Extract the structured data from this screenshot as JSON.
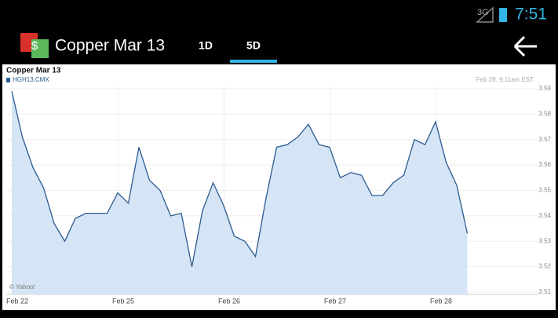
{
  "status_bar": {
    "network": "3G",
    "time": "7:51"
  },
  "action_bar": {
    "title": "Copper Mar 13",
    "tabs": [
      "1D",
      "5D"
    ]
  },
  "chart_data": {
    "type": "line",
    "title": "Copper Mar 13",
    "timestamp": "Feb 28, 9:11am EST",
    "credit": "© Yahoo!",
    "categories": [
      "Feb 22",
      null,
      null,
      null,
      null,
      null,
      null,
      null,
      null,
      null,
      "Feb 25",
      null,
      null,
      null,
      null,
      null,
      null,
      null,
      null,
      null,
      "Feb 26",
      null,
      null,
      null,
      null,
      null,
      null,
      null,
      null,
      null,
      "Feb 27",
      null,
      null,
      null,
      null,
      null,
      null,
      null,
      null,
      null,
      "Feb 28",
      null,
      null,
      null
    ],
    "series": [
      {
        "name": "HGH13.CMX",
        "color": "#2b5b91",
        "fill": "#d5e5f5",
        "values": [
          3.589,
          3.571,
          3.559,
          3.551,
          3.537,
          3.53,
          3.539,
          3.541,
          3.541,
          3.541,
          3.549,
          3.545,
          3.567,
          3.554,
          3.55,
          3.54,
          3.541,
          3.52,
          3.542,
          3.553,
          3.544,
          3.532,
          3.53,
          3.524,
          3.547,
          3.567,
          3.568,
          3.571,
          3.576,
          3.568,
          3.567,
          3.555,
          3.557,
          3.556,
          3.548,
          3.548,
          3.553,
          3.556,
          3.57,
          3.568,
          3.577,
          3.561,
          3.552,
          3.533
        ]
      }
    ],
    "ylim": [
      3.51,
      3.59
    ],
    "yticks": [
      3.51,
      3.52,
      3.53,
      3.54,
      3.55,
      3.56,
      3.57,
      3.58,
      3.59
    ],
    "grid": true
  }
}
